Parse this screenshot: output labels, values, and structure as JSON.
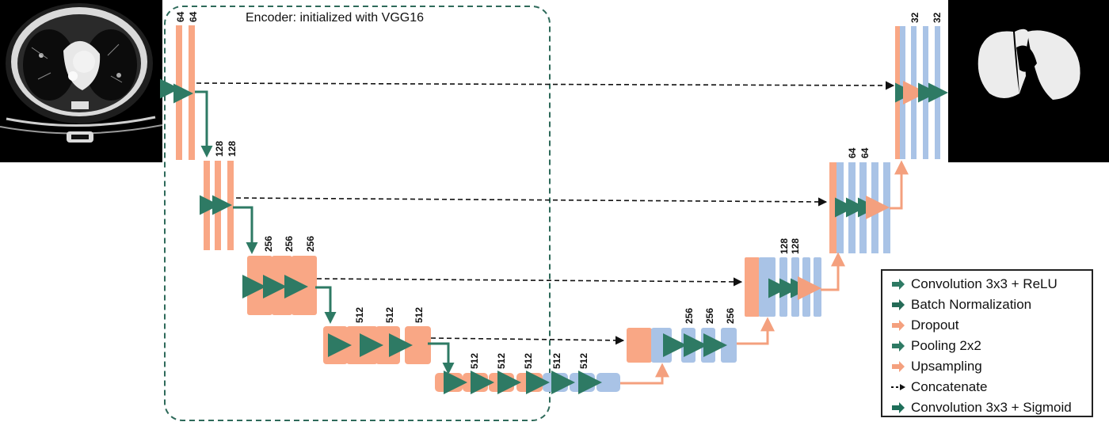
{
  "encoder_title": "Encoder: initialized with VGG16",
  "level1": {
    "enc_labels": [
      "64",
      "64"
    ],
    "dec_labels": [
      "32",
      "32"
    ]
  },
  "level2": {
    "enc_labels": [
      "128",
      "128"
    ],
    "dec_labels": [
      "64",
      "64"
    ]
  },
  "level3": {
    "enc_labels": [
      "256",
      "256",
      "256"
    ],
    "dec_labels": [
      "128",
      "128"
    ]
  },
  "level4": {
    "enc_labels": [
      "512",
      "512",
      "512"
    ],
    "dec_labels": [
      "256",
      "256",
      "256"
    ]
  },
  "bottleneck": {
    "enc_labels": [
      "512",
      "512",
      "512"
    ],
    "dec_labels": [
      "512",
      "512"
    ]
  },
  "legend": {
    "items": [
      {
        "label": "Convolution 3x3 + ReLU",
        "icon": "arrow-green"
      },
      {
        "label": "Batch Normalization",
        "icon": "arrow-dark-green"
      },
      {
        "label": "Dropout",
        "icon": "arrow-salmon"
      },
      {
        "label": "Pooling 2x2",
        "icon": "arrow-green"
      },
      {
        "label": "Upsampling",
        "icon": "arrow-salmon"
      },
      {
        "label": "Concatenate",
        "icon": "dashed-arrow"
      },
      {
        "label": "Convolution 3x3 + Sigmoid",
        "icon": "arrow-teal"
      }
    ]
  },
  "colors": {
    "encoder_block": "#f9a785",
    "decoder_block": "#a9c3e6",
    "green_arrow": "#2e7a64",
    "salmon_arrow": "#f4a07e",
    "encoder_frame": "#2e6a5a"
  }
}
